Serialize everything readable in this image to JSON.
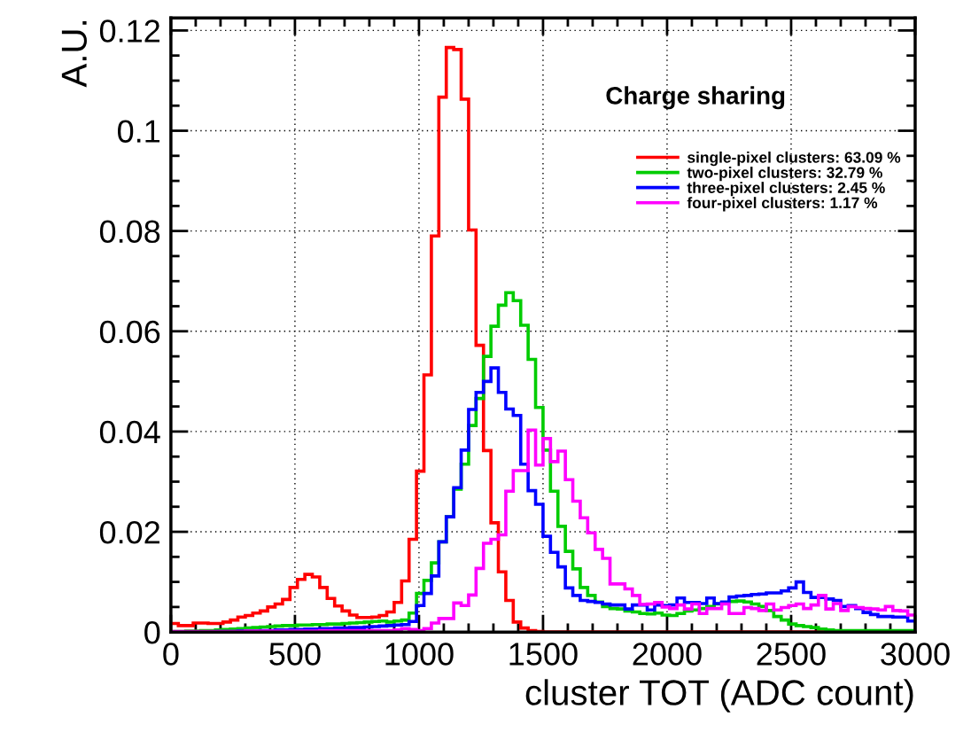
{
  "chart_data": {
    "type": "histogram",
    "title": "Charge sharing",
    "xlabel": "cluster TOT (ADC count)",
    "ylabel": "A.U.",
    "bins": [
      0,
      30,
      60,
      90,
      120,
      150,
      180,
      210,
      240,
      270,
      300,
      330,
      360,
      390,
      420,
      450,
      480,
      510,
      540,
      570,
      600,
      630,
      660,
      690,
      720,
      750,
      780,
      810,
      840,
      870,
      900,
      930,
      960,
      990,
      1020,
      1050,
      1080,
      1110,
      1140,
      1170,
      1200,
      1230,
      1260,
      1290,
      1320,
      1350,
      1380,
      1410,
      1440,
      1470,
      1500,
      1530,
      1560,
      1590,
      1620,
      1650,
      1680,
      1710,
      1740,
      1770,
      1800,
      1830,
      1860,
      1890,
      1920,
      1950,
      1980,
      2010,
      2040,
      2070,
      2100,
      2130,
      2160,
      2190,
      2220,
      2250,
      2280,
      2310,
      2340,
      2370,
      2400,
      2430,
      2460,
      2490,
      2520,
      2550,
      2580,
      2610,
      2640,
      2670,
      2700,
      2730,
      2760,
      2790,
      2820,
      2850,
      2880,
      2910,
      2940,
      2970,
      3000
    ],
    "series": [
      {
        "name": "single-pixel clusters: 63.09 %",
        "color": "#ff0000",
        "values": [
          0.0017,
          0.0013,
          0.0013,
          0.0018,
          0.0018,
          0.0017,
          0.0017,
          0.002,
          0.0024,
          0.003,
          0.0033,
          0.0038,
          0.0042,
          0.005,
          0.0056,
          0.0065,
          0.0089,
          0.0105,
          0.0115,
          0.011,
          0.0089,
          0.0067,
          0.0052,
          0.0042,
          0.0034,
          0.0029,
          0.0029,
          0.003,
          0.0033,
          0.004,
          0.0059,
          0.0102,
          0.0185,
          0.0321,
          0.0513,
          0.079,
          0.1067,
          0.1166,
          0.1162,
          0.1063,
          0.0802,
          0.0572,
          0.0362,
          0.0218,
          0.012,
          0.0063,
          0.002,
          0.0008,
          0.0003,
          0.0001,
          0,
          0,
          0,
          0,
          0,
          0,
          0,
          0,
          0,
          0,
          0,
          0,
          0,
          0,
          0,
          0,
          0,
          0,
          0,
          0,
          0,
          0,
          0,
          0,
          0,
          0,
          0,
          0,
          0,
          0,
          0,
          0,
          0,
          0,
          0,
          0,
          0,
          0,
          0,
          0,
          0,
          0,
          0,
          0,
          0,
          0,
          0,
          0,
          0,
          0
        ]
      },
      {
        "name": "two-pixel clusters: 32.79 %",
        "color": "#00cc00",
        "values": [
          0.0001,
          0.0001,
          0.0002,
          0.0002,
          0.0003,
          0.0003,
          0.0004,
          0.0005,
          0.0006,
          0.0007,
          0.0008,
          0.0009,
          0.001,
          0.0011,
          0.0012,
          0.0013,
          0.0013,
          0.0014,
          0.0014,
          0.0015,
          0.0015,
          0.0016,
          0.0016,
          0.0017,
          0.0018,
          0.0019,
          0.002,
          0.0021,
          0.0022,
          0.002,
          0.0022,
          0.0024,
          0.0038,
          0.0077,
          0.0103,
          0.0138,
          0.018,
          0.023,
          0.0285,
          0.0335,
          0.0412,
          0.0466,
          0.055,
          0.061,
          0.0652,
          0.0677,
          0.0661,
          0.0612,
          0.0544,
          0.0448,
          0.0363,
          0.0281,
          0.0211,
          0.0161,
          0.0126,
          0.0089,
          0.0073,
          0.006,
          0.0051,
          0.0047,
          0.0046,
          0.0042,
          0.004,
          0.0037,
          0.0036,
          0.0038,
          0.0034,
          0.0033,
          0.0037,
          0.0042,
          0.0044,
          0.0047,
          0.0051,
          0.0056,
          0.0059,
          0.0061,
          0.0062,
          0.006,
          0.0056,
          0.0051,
          0.0043,
          0.0031,
          0.0024,
          0.0016,
          0.0013,
          0.0011,
          0.0009,
          0.0006,
          0.0004,
          0.0003,
          0.0003,
          0.0003,
          0.0003,
          0.0003,
          0.0003,
          0.0003,
          0.0003,
          0.0003,
          0.0003,
          0.0003
        ]
      },
      {
        "name": "three-pixel clusters: 2.45 %",
        "color": "#0000ff",
        "values": [
          0,
          0,
          0,
          0,
          0,
          0,
          0.0001,
          0.0001,
          0.0001,
          0.0002,
          0.0002,
          0.0002,
          0.0003,
          0.0003,
          0.0004,
          0.0004,
          0.0005,
          0.0005,
          0.0006,
          0.0006,
          0.0007,
          0.0007,
          0.0008,
          0.0008,
          0.0009,
          0.0009,
          0.001,
          0.0011,
          0.0012,
          0.0013,
          0.0014,
          0.0015,
          0.0021,
          0.0053,
          0.0077,
          0.0112,
          0.018,
          0.023,
          0.0288,
          0.0363,
          0.0444,
          0.0478,
          0.05,
          0.0527,
          0.0478,
          0.0445,
          0.0432,
          0.0335,
          0.0282,
          0.0255,
          0.0191,
          0.0159,
          0.013,
          0.0088,
          0.0073,
          0.0063,
          0.0061,
          0.0059,
          0.0056,
          0.0054,
          0.0054,
          0.0046,
          0.0054,
          0.0054,
          0.0044,
          0.0054,
          0.0053,
          0.0054,
          0.0068,
          0.0059,
          0.0059,
          0.0057,
          0.0068,
          0.0057,
          0.006,
          0.007,
          0.0072,
          0.0073,
          0.0075,
          0.0076,
          0.0078,
          0.0078,
          0.0082,
          0.0088,
          0.01,
          0.0079,
          0.0069,
          0.0069,
          0.0066,
          0.0063,
          0.0051,
          0.0053,
          0.0047,
          0.0039,
          0.0035,
          0.0031,
          0.0031,
          0.003,
          0.003,
          0.0022
        ]
      },
      {
        "name": "four-pixel clusters: 1.17 %",
        "color": "#ff00ff",
        "values": [
          0.0001,
          0.0001,
          0.0001,
          0.0001,
          0.0001,
          0.0001,
          0.0001,
          0.0001,
          0.0001,
          0.0001,
          0.0002,
          0.0002,
          0.0002,
          0.0002,
          0.0002,
          0.0002,
          0.0002,
          0.0002,
          0.0002,
          0.0002,
          0.0003,
          0.0003,
          0.0003,
          0.0003,
          0.0003,
          0.0003,
          0.0003,
          0.0003,
          0.0003,
          0.0003,
          0.0004,
          0.0007,
          0.0005,
          0.0003,
          0.0007,
          0.0018,
          0.0027,
          0.0027,
          0.0058,
          0.0053,
          0.0074,
          0.0127,
          0.0177,
          0.0185,
          0.0194,
          0.0281,
          0.0322,
          0.0322,
          0.0403,
          0.0333,
          0.0386,
          0.034,
          0.0361,
          0.0304,
          0.0261,
          0.0228,
          0.0198,
          0.0165,
          0.0147,
          0.0096,
          0.0096,
          0.0086,
          0.0073,
          0.0055,
          0.0056,
          0.0059,
          0.005,
          0.0047,
          0.0054,
          0.0046,
          0.0056,
          0.0037,
          0.0047,
          0.0047,
          0.0056,
          0.0037,
          0.0037,
          0.0049,
          0.0047,
          0.0043,
          0.0056,
          0.0044,
          0.0049,
          0.0053,
          0.0056,
          0.0047,
          0.0054,
          0.0073,
          0.0046,
          0.0057,
          0.0043,
          0.0051,
          0.0049,
          0.0047,
          0.0046,
          0.0044,
          0.0051,
          0.0043,
          0.0042,
          0.0034
        ]
      }
    ],
    "xlim": [
      0,
      3000
    ],
    "ylim": [
      0,
      0.1225
    ],
    "xticks": [
      0,
      500,
      1000,
      1500,
      2000,
      2500,
      3000
    ],
    "yticks": [
      0,
      0.02,
      0.04,
      0.06,
      0.08,
      0.1,
      0.12
    ],
    "grid": true,
    "legend": "top right"
  }
}
